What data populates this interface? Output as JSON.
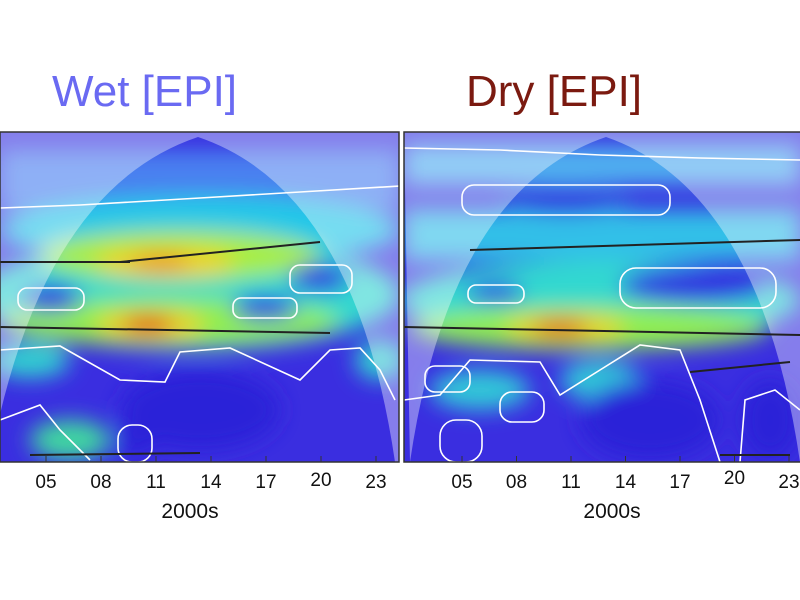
{
  "chart_data": [
    {
      "type": "heatmap",
      "title": "Wet [EPI]",
      "title_color": "#6a6af2",
      "xlabel": "2000s",
      "xticks": [
        "05",
        "08",
        "11",
        "14",
        "17",
        "20",
        "23"
      ],
      "colormap": [
        "#2a1fd6",
        "#1a8cff",
        "#22e0e0",
        "#9cf04a",
        "#f2e024",
        "#f07a1a",
        "#d81e10"
      ]
    },
    {
      "type": "heatmap",
      "title": "Dry [EPI]",
      "title_color": "#7b1a10",
      "xlabel": "2000s",
      "xticks": [
        "05",
        "08",
        "11",
        "14",
        "17",
        "20",
        "23"
      ],
      "colormap": [
        "#2a1fd6",
        "#1a8cff",
        "#22e0e0",
        "#9cf04a",
        "#f2e024",
        "#f07a1a",
        "#d81e10"
      ]
    }
  ]
}
